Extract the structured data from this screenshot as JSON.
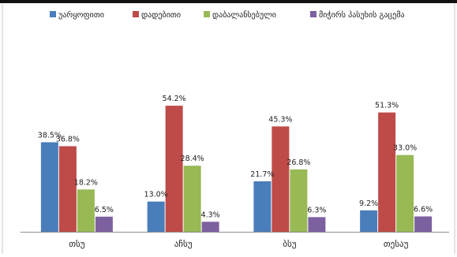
{
  "chart_data": {
    "type": "bar",
    "categories": [
      "თსუ",
      "აჩსუ",
      "ბსუ",
      "თესაუ"
    ],
    "series": [
      {
        "name": "უარყოფითი",
        "values": [
          38.5,
          13.0,
          21.7,
          9.2
        ],
        "color": "#4a7ebb"
      },
      {
        "name": "დადებითი",
        "values": [
          36.8,
          54.2,
          45.3,
          51.3
        ],
        "color": "#be4b48"
      },
      {
        "name": "დაბალანსებული",
        "values": [
          18.2,
          28.4,
          26.8,
          33.0
        ],
        "color": "#98b954"
      },
      {
        "name": "მიჭირს პასუხის გაცემა",
        "values": [
          6.5,
          4.3,
          6.3,
          6.6
        ],
        "color": "#7d60a0"
      }
    ],
    "value_labels": [
      [
        "38.5%",
        "13.0%",
        "21.7%",
        "9.2%"
      ],
      [
        "36.8%",
        "54.2%",
        "45.3%",
        "51.3%"
      ],
      [
        "18.2%",
        "28.4%",
        "26.8%",
        "33.0%"
      ],
      [
        "6.5%",
        "4.3%",
        "6.3%",
        "6.6%"
      ]
    ],
    "ylim": [
      0,
      60
    ],
    "grid": false,
    "legend_position": "top"
  }
}
